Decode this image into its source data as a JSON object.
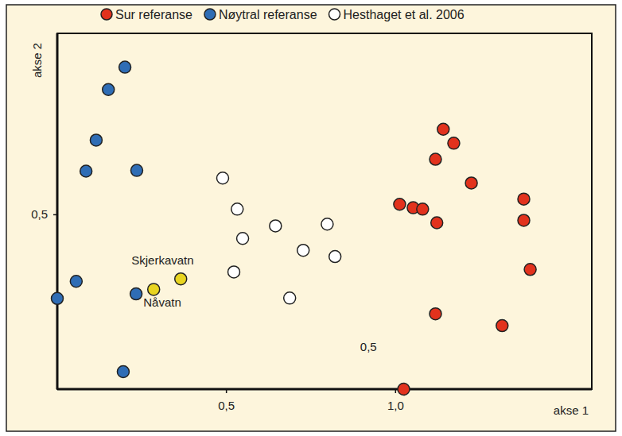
{
  "chart_data": {
    "type": "scatter",
    "xlabel": "akse 1",
    "ylabel": "akse 2",
    "xlim": [
      0,
      1.58
    ],
    "ylim": [
      0,
      1.02
    ],
    "xticks": [
      {
        "value": 0.5,
        "label": "0,5"
      },
      {
        "value": 1.0,
        "label": "1,0"
      }
    ],
    "yticks": [
      {
        "value": 0.5,
        "label": "0,5"
      }
    ],
    "grid": false,
    "legend": "top",
    "series": [
      {
        "name": "Sur referanse",
        "color": "#e2321d",
        "marker": "circle",
        "x": [
          1.141,
          1.172,
          1.118,
          1.224,
          1.012,
          1.052,
          1.08,
          1.122,
          1.379,
          1.379,
          1.398,
          1.118,
          1.315,
          1.024
        ],
        "values": [
          0.745,
          0.705,
          0.659,
          0.591,
          0.53,
          0.52,
          0.516,
          0.477,
          0.545,
          0.484,
          0.343,
          0.216,
          0.182,
          0.0
        ]
      },
      {
        "name": "Nøytral referanse",
        "color": "#2f6db5",
        "marker": "circle",
        "x": [
          0.0,
          0.056,
          0.085,
          0.115,
          0.151,
          0.2,
          0.235,
          0.233,
          0.195
        ],
        "values": [
          0.26,
          0.309,
          0.625,
          0.714,
          0.859,
          0.923,
          0.627,
          0.273,
          0.05
        ]
      },
      {
        "name": "Hesthaget et al. 2006",
        "color": "#ffffff",
        "marker": "circle",
        "x": [
          0.489,
          0.532,
          0.548,
          0.645,
          0.522,
          0.727,
          0.687,
          0.798,
          0.821
        ],
        "values": [
          0.605,
          0.516,
          0.432,
          0.468,
          0.336,
          0.398,
          0.261,
          0.473,
          0.38
        ]
      },
      {
        "color": "#e8d420",
        "marker": "circle",
        "labels": [
          "Nåvatn",
          "Skjerkavatn"
        ],
        "x": [
          0.285,
          0.365
        ],
        "values": [
          0.286,
          0.316
        ]
      }
    ],
    "annotations": [
      {
        "text": "0,5",
        "x": 0.92,
        "y": 0.11
      }
    ]
  }
}
